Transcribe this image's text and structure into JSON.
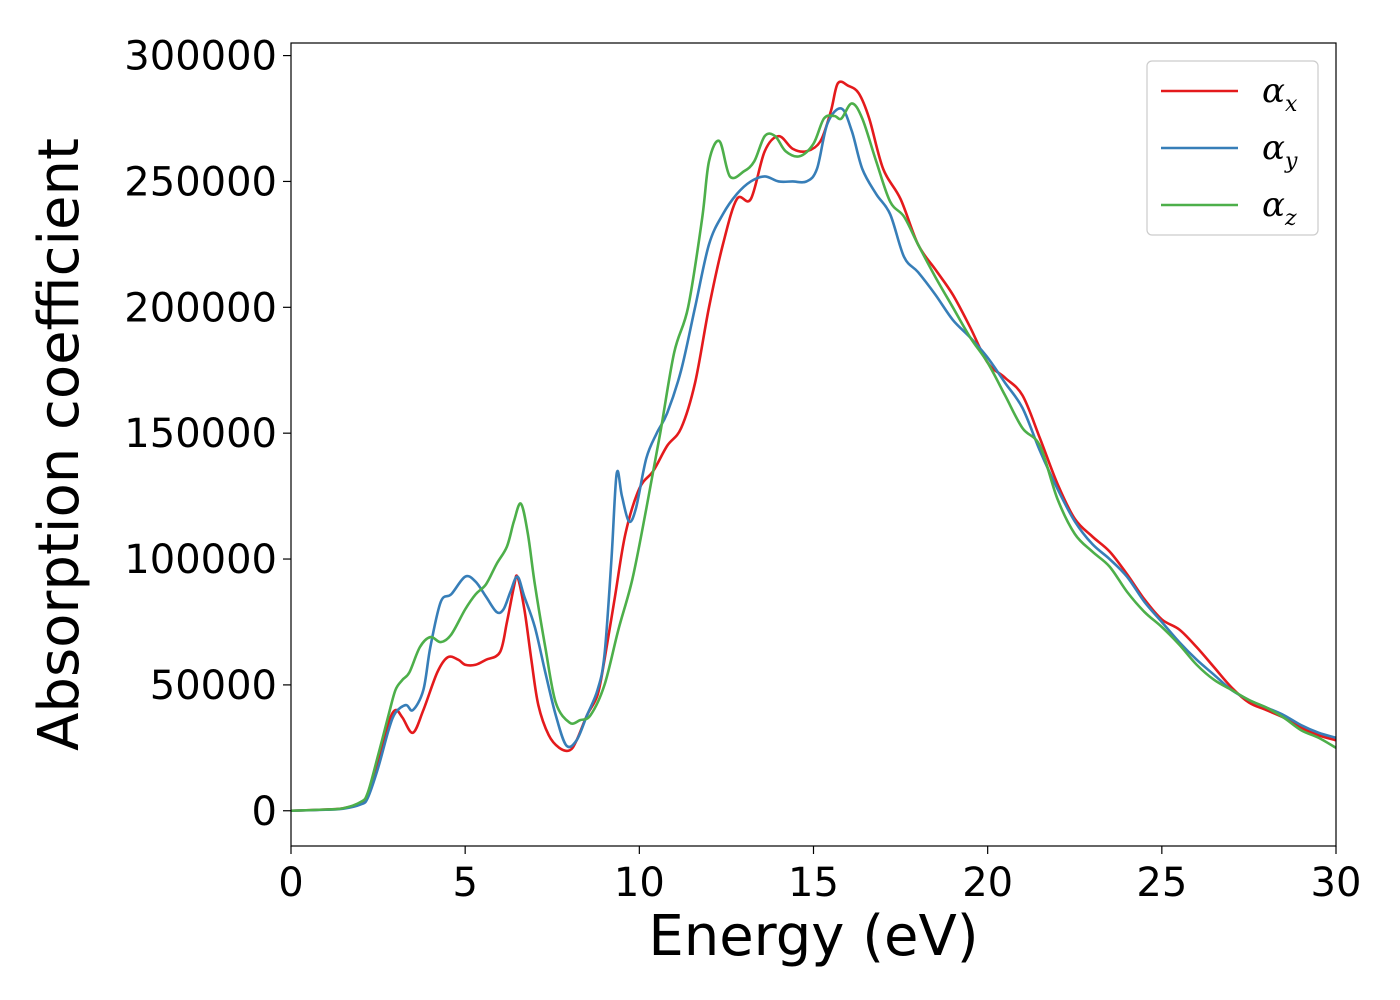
{
  "chart_data": {
    "type": "line",
    "title": "",
    "xlabel": "Energy (eV)",
    "ylabel": "Absorption coefficient",
    "xlim": [
      0,
      30
    ],
    "ylim": [
      -14000,
      305000
    ],
    "xticks": [
      0,
      5,
      10,
      15,
      20,
      25,
      30
    ],
    "yticks": [
      0,
      50000,
      100000,
      150000,
      200000,
      250000,
      300000
    ],
    "grid": false,
    "legend_position": "top-right",
    "series": [
      {
        "name": "α",
        "subscript": "x",
        "color": "#e41a1c",
        "x": [
          0,
          1,
          1.5,
          2,
          2.2,
          2.5,
          2.8,
          3.0,
          3.2,
          3.5,
          3.8,
          4.2,
          4.5,
          4.8,
          5.0,
          5.3,
          5.6,
          6.0,
          6.2,
          6.4,
          6.5,
          6.7,
          6.9,
          7.1,
          7.4,
          7.7,
          8.0,
          8.2,
          8.5,
          8.8,
          9.0,
          9.3,
          9.6,
          10.0,
          10.4,
          10.8,
          11.2,
          11.6,
          12.0,
          12.4,
          12.8,
          13.2,
          13.6,
          14.0,
          14.4,
          14.8,
          15.2,
          15.5,
          15.7,
          16.0,
          16.3,
          16.6,
          17.0,
          17.5,
          18.0,
          18.5,
          19.0,
          19.5,
          20.0,
          20.5,
          21.0,
          21.5,
          22.0,
          22.5,
          23.0,
          23.5,
          24.0,
          24.5,
          25.0,
          25.5,
          26.0,
          26.5,
          27.0,
          27.5,
          28.0,
          28.5,
          29.0,
          29.5,
          30.0
        ],
        "y": [
          0,
          500,
          1000,
          3000,
          6000,
          20000,
          35000,
          40000,
          37000,
          31000,
          40000,
          55000,
          61000,
          60000,
          58000,
          58000,
          60000,
          63000,
          75000,
          89000,
          93000,
          80000,
          60000,
          42000,
          30000,
          25000,
          24000,
          28000,
          38000,
          46000,
          60000,
          85000,
          110000,
          128000,
          135000,
          145000,
          152000,
          170000,
          200000,
          225000,
          243000,
          243000,
          262000,
          268000,
          263000,
          262000,
          266000,
          278000,
          289000,
          288000,
          285000,
          275000,
          255000,
          243000,
          225000,
          215000,
          205000,
          192000,
          178000,
          172000,
          165000,
          148000,
          130000,
          116000,
          109000,
          103000,
          94000,
          84000,
          76000,
          72000,
          65000,
          57000,
          49000,
          43000,
          40000,
          37000,
          33000,
          30000,
          28000
        ]
      },
      {
        "name": "α",
        "subscript": "y",
        "color": "#377eb8",
        "x": [
          0,
          1,
          1.5,
          2,
          2.2,
          2.5,
          2.8,
          3.0,
          3.3,
          3.5,
          3.8,
          4.0,
          4.3,
          4.6,
          5.0,
          5.3,
          5.6,
          5.9,
          6.1,
          6.3,
          6.5,
          6.7,
          7.0,
          7.3,
          7.6,
          7.9,
          8.2,
          8.5,
          8.8,
          9.0,
          9.2,
          9.35,
          9.5,
          9.7,
          9.9,
          10.2,
          10.5,
          10.8,
          11.2,
          11.6,
          12.0,
          12.4,
          12.8,
          13.2,
          13.6,
          14.0,
          14.4,
          14.8,
          15.1,
          15.4,
          15.8,
          16.1,
          16.4,
          16.8,
          17.2,
          17.6,
          18.0,
          18.5,
          19.0,
          19.5,
          20.0,
          20.5,
          21.0,
          21.5,
          22.0,
          22.5,
          23.0,
          23.5,
          24.0,
          24.5,
          25.0,
          25.5,
          26.0,
          26.5,
          27.0,
          27.5,
          28.0,
          28.5,
          29.0,
          29.5,
          30.0
        ],
        "y": [
          0,
          400,
          800,
          2500,
          5000,
          17000,
          32000,
          39000,
          42000,
          40000,
          48000,
          65000,
          83000,
          86000,
          93000,
          91000,
          85000,
          79000,
          80000,
          87000,
          93000,
          85000,
          73000,
          55000,
          38000,
          26000,
          28000,
          38000,
          48000,
          62000,
          100000,
          134000,
          125000,
          115000,
          120000,
          140000,
          150000,
          158000,
          175000,
          200000,
          225000,
          237000,
          245000,
          250000,
          252000,
          250000,
          250000,
          250000,
          255000,
          273000,
          279000,
          270000,
          255000,
          245000,
          237000,
          220000,
          214000,
          205000,
          195000,
          188000,
          180000,
          170000,
          160000,
          143000,
          128000,
          115000,
          106000,
          100000,
          93000,
          83000,
          75000,
          67000,
          60000,
          54000,
          48000,
          44000,
          41000,
          38000,
          34000,
          31000,
          29000
        ]
      },
      {
        "name": "α",
        "subscript": "z",
        "color": "#4daf4a",
        "x": [
          0,
          1,
          1.5,
          2,
          2.2,
          2.5,
          2.8,
          3.0,
          3.2,
          3.4,
          3.7,
          4.0,
          4.3,
          4.6,
          5.0,
          5.3,
          5.6,
          5.9,
          6.2,
          6.4,
          6.6,
          6.8,
          7.0,
          7.3,
          7.6,
          8.0,
          8.3,
          8.6,
          9.0,
          9.4,
          9.8,
          10.2,
          10.6,
          11.0,
          11.4,
          11.8,
          12.0,
          12.3,
          12.6,
          13.0,
          13.3,
          13.6,
          13.9,
          14.2,
          14.6,
          15.0,
          15.3,
          15.6,
          15.8,
          16.1,
          16.4,
          16.8,
          17.2,
          17.6,
          18.0,
          18.5,
          19.0,
          19.5,
          20.0,
          20.5,
          21.0,
          21.5,
          22.0,
          22.5,
          23.0,
          23.5,
          24.0,
          24.5,
          25.0,
          25.5,
          26.0,
          26.5,
          27.0,
          27.5,
          28.0,
          28.5,
          29.0,
          29.5,
          30.0
        ],
        "y": [
          0,
          500,
          1000,
          3500,
          7000,
          22000,
          38000,
          48000,
          52000,
          55000,
          65000,
          69000,
          67000,
          70000,
          80000,
          86000,
          90000,
          98000,
          105000,
          115000,
          122000,
          110000,
          90000,
          65000,
          43000,
          35000,
          36000,
          38000,
          50000,
          72000,
          92000,
          120000,
          150000,
          182000,
          200000,
          235000,
          258000,
          266000,
          252000,
          254000,
          258000,
          268000,
          268000,
          262000,
          260000,
          265000,
          275000,
          276000,
          275000,
          281000,
          275000,
          258000,
          242000,
          236000,
          225000,
          212000,
          200000,
          188000,
          178000,
          165000,
          152000,
          145000,
          124000,
          110000,
          103000,
          97000,
          87000,
          79000,
          73000,
          66000,
          58000,
          52000,
          48000,
          44000,
          41000,
          37000,
          32000,
          29000,
          25000
        ]
      }
    ]
  }
}
